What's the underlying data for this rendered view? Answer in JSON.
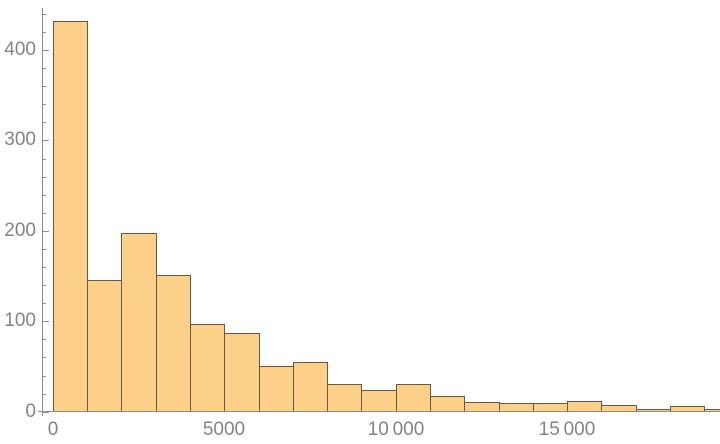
{
  "chart_data": {
    "type": "bar",
    "subtype": "histogram",
    "title": "",
    "xlabel": "",
    "ylabel": "",
    "bin_width": 1000,
    "bin_edges": [
      0,
      1000,
      2000,
      3000,
      4000,
      5000,
      6000,
      7000,
      8000,
      9000,
      10000,
      11000,
      12000,
      13000,
      14000,
      15000,
      16000,
      17000,
      18000,
      19000,
      20000
    ],
    "values": [
      432,
      146,
      198,
      151,
      97,
      87,
      50,
      55,
      31,
      24,
      31,
      17,
      11,
      10,
      10,
      12,
      7,
      3,
      6,
      3
    ],
    "ylim": [
      0,
      446
    ],
    "xlim_visible": [
      0,
      19460
    ],
    "note_last_bin_clipped_at_right_edge": true,
    "grid": false,
    "legend": null,
    "yticks": {
      "major_values": [
        0,
        100,
        200,
        300,
        400
      ],
      "major_labels": [
        "0",
        "100",
        "200",
        "300",
        "400"
      ],
      "minor_step": 20,
      "minor_max": 440
    },
    "xticks": {
      "major_values": [
        0,
        5000,
        10000,
        15000
      ],
      "major_labels": [
        "0",
        "5000",
        "10 000",
        "15 000"
      ],
      "minor_step": 1000,
      "minor_max": 19000
    },
    "colors": {
      "bar_fill": "#FCD089",
      "bar_edge": "rgba(45,42,38,0.72)",
      "axis": "#8C8C8C",
      "tick_label": "#848484",
      "background": "#FFFFFF"
    }
  }
}
